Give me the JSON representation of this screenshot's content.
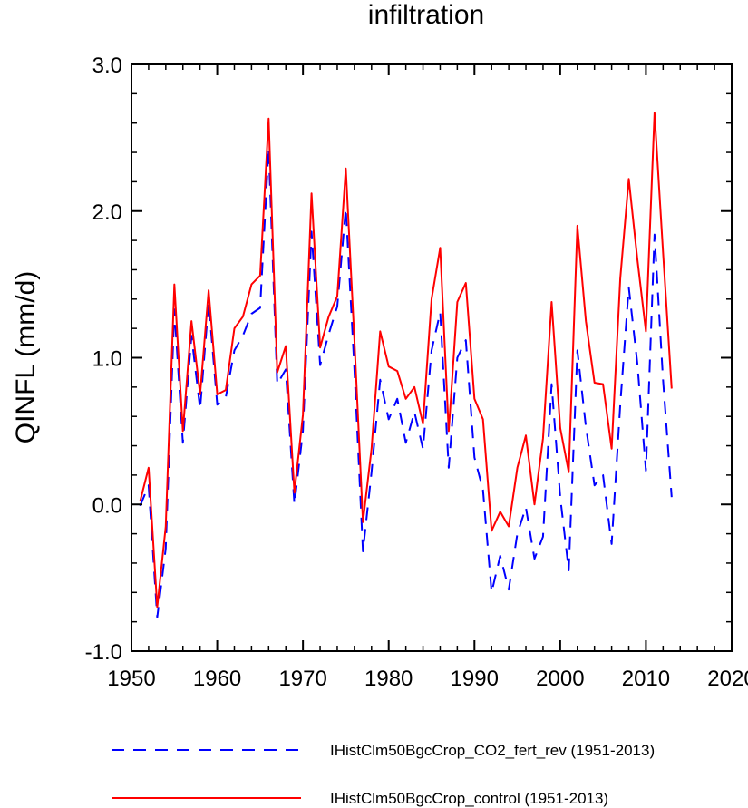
{
  "chart_data": {
    "type": "line",
    "title": "infiltration",
    "xlabel": "",
    "ylabel": "QINFL  (mm/d)",
    "xlim": [
      1950,
      2020
    ],
    "ylim": [
      -1.0,
      3.0
    ],
    "xticks": [
      "1950",
      "1960",
      "1970",
      "1980",
      "1990",
      "2000",
      "2010",
      "2020"
    ],
    "yticks": [
      "-1.0",
      "0.0",
      "1.0",
      "2.0",
      "3.0"
    ],
    "grid": false,
    "legend_position": "bottom",
    "x": [
      1951,
      1952,
      1953,
      1954,
      1955,
      1956,
      1957,
      1958,
      1959,
      1960,
      1961,
      1962,
      1963,
      1964,
      1965,
      1966,
      1967,
      1968,
      1969,
      1970,
      1971,
      1972,
      1973,
      1974,
      1975,
      1976,
      1977,
      1978,
      1979,
      1980,
      1981,
      1982,
      1983,
      1984,
      1985,
      1986,
      1987,
      1988,
      1989,
      1990,
      1991,
      1992,
      1993,
      1994,
      1995,
      1996,
      1997,
      1998,
      1999,
      2000,
      2001,
      2002,
      2003,
      2004,
      2005,
      2006,
      2007,
      2008,
      2009,
      2010,
      2011,
      2012,
      2013
    ],
    "series": [
      {
        "name": "IHistClm50BgcCrop_CO2_fert_rev (1951-2013)",
        "color": "#0000ff",
        "style": "dashed",
        "values": [
          -0.01,
          0.13,
          -0.77,
          -0.3,
          1.33,
          0.42,
          1.15,
          0.65,
          1.38,
          0.68,
          0.73,
          1.05,
          1.15,
          1.3,
          1.34,
          2.43,
          0.82,
          0.92,
          0.0,
          0.5,
          1.86,
          0.95,
          1.16,
          1.35,
          2.02,
          0.92,
          -0.32,
          0.22,
          0.85,
          0.58,
          0.72,
          0.42,
          0.63,
          0.38,
          1.05,
          1.31,
          0.25,
          1.0,
          1.12,
          0.32,
          0.1,
          -0.6,
          -0.35,
          -0.58,
          -0.2,
          -0.02,
          -0.37,
          -0.22,
          0.82,
          0.05,
          -0.45,
          1.05,
          0.53,
          0.13,
          0.2,
          -0.27,
          0.68,
          1.48,
          0.96,
          0.23,
          1.84,
          0.85,
          0.05
        ]
      },
      {
        "name": "IHistClm50BgcCrop_control (1951-2013)",
        "color": "#ff0000",
        "style": "solid",
        "values": [
          0.02,
          0.25,
          -0.7,
          -0.15,
          1.5,
          0.5,
          1.25,
          0.75,
          1.46,
          0.75,
          0.78,
          1.2,
          1.28,
          1.5,
          1.56,
          2.63,
          0.9,
          1.08,
          0.08,
          0.61,
          2.12,
          1.07,
          1.28,
          1.42,
          2.29,
          1.12,
          -0.12,
          0.38,
          1.18,
          0.94,
          0.91,
          0.72,
          0.8,
          0.55,
          1.4,
          1.75,
          0.5,
          1.38,
          1.51,
          0.72,
          0.58,
          -0.18,
          -0.05,
          -0.15,
          0.25,
          0.47,
          0.0,
          0.45,
          1.38,
          0.52,
          0.22,
          1.9,
          1.25,
          0.83,
          0.82,
          0.38,
          1.54,
          2.22,
          1.67,
          1.18,
          2.67,
          1.72,
          0.79
        ]
      }
    ]
  }
}
